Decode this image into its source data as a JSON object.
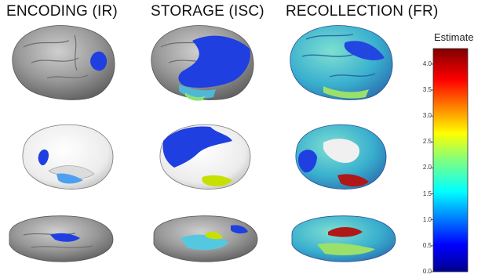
{
  "columns": [
    {
      "id": "encoding",
      "title": "ENCODING (IR)"
    },
    {
      "id": "storage",
      "title": "STORAGE (ISC)"
    },
    {
      "id": "recollection",
      "title": "RECOLLECTION (FR)"
    }
  ],
  "views": [
    "lateral",
    "medial",
    "ventral"
  ],
  "colorbar": {
    "title": "Estimate",
    "ticks": [
      "4.0",
      "3.5",
      "3.0",
      "2.5",
      "2.0",
      "1.5",
      "1.0",
      "0.5",
      "0.0"
    ],
    "min": 0,
    "max": 4.3,
    "colormap": "jet"
  },
  "colors": {
    "brain_gray": "#8f8f8f",
    "medial_white": "#f2f2f2",
    "low_blue": "#1633e6",
    "mid_cyan": "#55c8e0",
    "high_red": "#b01818"
  }
}
